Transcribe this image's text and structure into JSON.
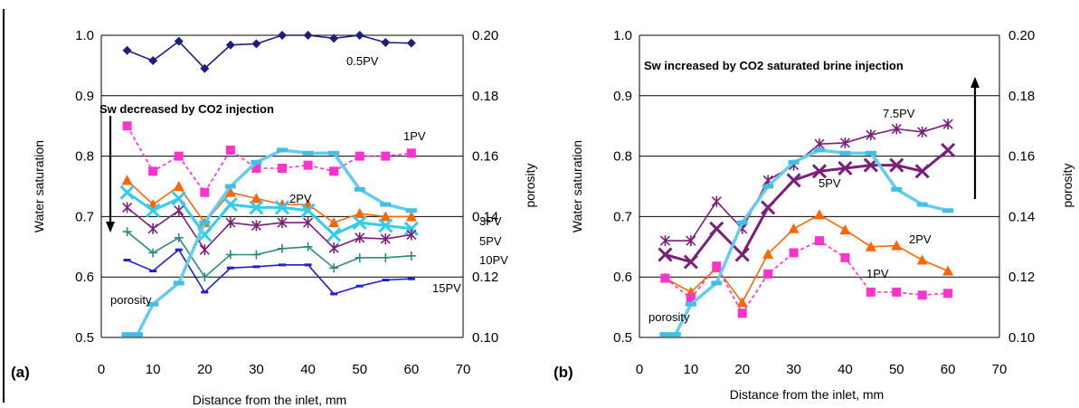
{
  "colors": {
    "0.5PV": "#1f1f7a",
    "1PV": "#ff33cc",
    "2PV": "#ff6600",
    "3PV": "#33ccee",
    "5PV": "#7a1f7a",
    "10PV": "#2e8b7a",
    "15PV": "#1f1fd6",
    "porosity": "#66ccee",
    "grid": "#000000"
  },
  "chart_data": [
    {
      "type": "line",
      "panel_label": "(a)",
      "xlabel": "Distance from the inlet, mm",
      "ylabel": "Water saturation",
      "y2label": "porosity",
      "xlim": [
        0,
        70
      ],
      "xticks": [
        0,
        10,
        20,
        30,
        40,
        50,
        60,
        70
      ],
      "ylim": [
        0.5,
        1.0
      ],
      "yticks": [
        "0.5",
        "0.6",
        "0.7",
        "0.8",
        "0.9",
        "1.0"
      ],
      "y2lim": [
        0.1,
        0.2
      ],
      "y2ticks": [
        "0.10",
        "0.12",
        "0.14",
        "0.16",
        "0.18",
        "0.20"
      ],
      "grid": "horizontal",
      "annotation": "Sw decreased by CO2 injection",
      "arrow_direction": "down",
      "x": [
        5,
        10,
        15,
        20,
        25,
        30,
        35,
        40,
        45,
        50,
        55,
        60
      ],
      "series": [
        {
          "name": "0.5PV",
          "marker": "diamond",
          "values": [
            0.975,
            0.958,
            0.99,
            0.945,
            0.984,
            0.986,
            1.0,
            1.0,
            0.995,
            1.0,
            0.988,
            0.987
          ]
        },
        {
          "name": "1PV",
          "marker": "square",
          "dashed": true,
          "values": [
            0.85,
            0.775,
            0.8,
            0.74,
            0.81,
            0.78,
            0.78,
            0.785,
            0.775,
            0.8,
            0.8,
            0.805
          ]
        },
        {
          "name": "2PV",
          "marker": "triangle",
          "values": [
            0.76,
            0.72,
            0.75,
            0.69,
            0.74,
            0.73,
            0.72,
            0.72,
            0.69,
            0.705,
            0.7,
            0.7
          ]
        },
        {
          "name": "3PV",
          "marker": "x-thick",
          "values": [
            0.74,
            0.71,
            0.73,
            0.67,
            0.72,
            0.715,
            0.715,
            0.71,
            0.67,
            0.69,
            0.685,
            0.68
          ]
        },
        {
          "name": "5PV",
          "marker": "star",
          "values": [
            0.715,
            0.68,
            0.71,
            0.645,
            0.69,
            0.685,
            0.69,
            0.69,
            0.648,
            0.665,
            0.663,
            0.67
          ]
        },
        {
          "name": "10PV",
          "marker": "plus",
          "values": [
            0.675,
            0.64,
            0.665,
            0.6,
            0.637,
            0.637,
            0.647,
            0.65,
            0.615,
            0.632,
            0.632,
            0.635
          ]
        },
        {
          "name": "15PV",
          "marker": "dash",
          "values": [
            0.628,
            0.61,
            0.645,
            0.575,
            0.615,
            0.617,
            0.62,
            0.62,
            0.572,
            0.585,
            0.595,
            0.597
          ]
        },
        {
          "name": "porosity",
          "axis": "right",
          "marker": "dash-thick",
          "x": [
            5,
            7,
            10,
            15,
            20,
            25,
            30,
            35,
            40,
            45,
            50,
            55,
            60
          ],
          "values": [
            0.101,
            0.101,
            0.111,
            0.118,
            0.138,
            0.15,
            0.158,
            0.162,
            0.161,
            0.161,
            0.149,
            0.144,
            0.142
          ]
        }
      ]
    },
    {
      "type": "line",
      "panel_label": "(b)",
      "xlabel": "Distance from the inlet, mm",
      "ylabel": "Water saturation",
      "y2label": "porosity",
      "xlim": [
        0,
        70
      ],
      "xticks": [
        0,
        10,
        20,
        30,
        40,
        50,
        60,
        70
      ],
      "ylim": [
        0.5,
        1.0
      ],
      "yticks": [
        "0.5",
        "0.6",
        "0.7",
        "0.8",
        "0.9",
        "1.0"
      ],
      "y2lim": [
        0.1,
        0.2
      ],
      "y2ticks": [
        "0.10",
        "0.12",
        "0.14",
        "0.16",
        "0.18",
        "0.20"
      ],
      "grid": "horizontal",
      "annotation": "Sw increased by CO2 saturated brine injection",
      "arrow_direction": "up",
      "x": [
        5,
        10,
        15,
        20,
        25,
        30,
        35,
        40,
        45,
        50,
        55,
        60
      ],
      "series": [
        {
          "name": "7.5PV",
          "marker": "star",
          "values": [
            0.66,
            0.66,
            0.725,
            0.68,
            0.76,
            0.785,
            0.82,
            0.822,
            0.835,
            0.845,
            0.84,
            0.853
          ]
        },
        {
          "name": "5PV",
          "marker": "x-thick",
          "values": [
            0.637,
            0.625,
            0.68,
            0.637,
            0.715,
            0.76,
            0.775,
            0.78,
            0.785,
            0.785,
            0.775,
            0.81
          ]
        },
        {
          "name": "2PV",
          "marker": "triangle",
          "values": [
            0.598,
            0.575,
            0.615,
            0.558,
            0.638,
            0.68,
            0.703,
            0.678,
            0.65,
            0.652,
            0.628,
            0.61
          ]
        },
        {
          "name": "1PV",
          "marker": "square",
          "dashed": true,
          "values": [
            0.598,
            0.565,
            0.618,
            0.54,
            0.605,
            0.64,
            0.66,
            0.632,
            0.575,
            0.575,
            0.57,
            0.573
          ]
        },
        {
          "name": "porosity",
          "axis": "right",
          "marker": "dash-thick",
          "x": [
            5,
            7,
            10,
            15,
            20,
            25,
            30,
            35,
            40,
            45,
            50,
            55,
            60
          ],
          "values": [
            0.101,
            0.101,
            0.111,
            0.118,
            0.138,
            0.15,
            0.158,
            0.162,
            0.161,
            0.161,
            0.149,
            0.144,
            0.142
          ]
        }
      ]
    }
  ]
}
